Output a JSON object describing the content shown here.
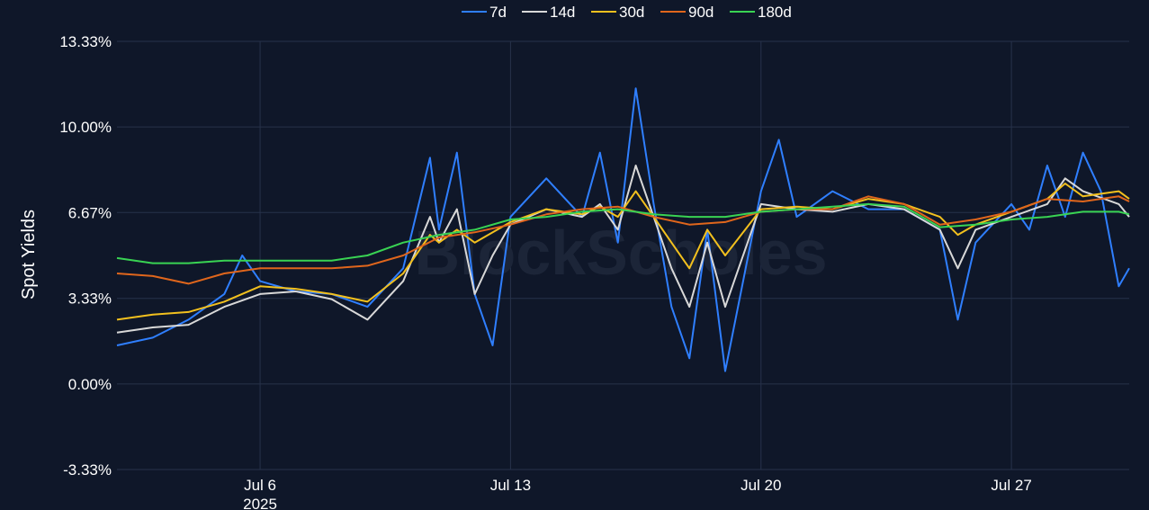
{
  "chart_data": {
    "type": "line",
    "title": "",
    "xlabel": "",
    "ylabel": "Spot Yields",
    "watermark": "BlockScholes",
    "x_range": [
      "2025-07-02",
      "2025-07-30T07:00"
    ],
    "ylim": [
      -3.33,
      13.33
    ],
    "yticks": [
      "13.33%",
      "10.00%",
      "6.67%",
      "3.33%",
      "0.00%",
      "-3.33%"
    ],
    "ytick_values": [
      13.33,
      10.0,
      6.67,
      3.33,
      0.0,
      -3.33
    ],
    "xticks": [
      {
        "date": "2025-07-06",
        "label": "Jul 6",
        "sub": "2025"
      },
      {
        "date": "2025-07-13",
        "label": "Jul 13",
        "sub": ""
      },
      {
        "date": "2025-07-20",
        "label": "Jul 20",
        "sub": ""
      },
      {
        "date": "2025-07-27",
        "label": "Jul 27",
        "sub": ""
      }
    ],
    "grid": true,
    "legend_position": "top-center",
    "series": [
      {
        "name": "7d",
        "color": "#2f7fff",
        "x": [
          "2025-07-02",
          "2025-07-03",
          "2025-07-04",
          "2025-07-05",
          "2025-07-05T12:00",
          "2025-07-06",
          "2025-07-07",
          "2025-07-08",
          "2025-07-09",
          "2025-07-10",
          "2025-07-10T18:00",
          "2025-07-11",
          "2025-07-11T12:00",
          "2025-07-12",
          "2025-07-12T12:00",
          "2025-07-13",
          "2025-07-14",
          "2025-07-15",
          "2025-07-15T12:00",
          "2025-07-16",
          "2025-07-16T12:00",
          "2025-07-17",
          "2025-07-17T12:00",
          "2025-07-18",
          "2025-07-18T12:00",
          "2025-07-19",
          "2025-07-20",
          "2025-07-20T12:00",
          "2025-07-21",
          "2025-07-22",
          "2025-07-23",
          "2025-07-24",
          "2025-07-25",
          "2025-07-25T12:00",
          "2025-07-26",
          "2025-07-27",
          "2025-07-27T12:00",
          "2025-07-28",
          "2025-07-28T12:00",
          "2025-07-29",
          "2025-07-29T12:00",
          "2025-07-30",
          "2025-07-30T07:00"
        ],
        "y": [
          1.5,
          1.8,
          2.5,
          3.5,
          5.0,
          4.0,
          3.6,
          3.5,
          3.0,
          4.5,
          8.8,
          6.0,
          9.0,
          3.5,
          1.5,
          6.5,
          8.0,
          6.5,
          9.0,
          5.5,
          11.5,
          7.0,
          3.0,
          1.0,
          6.0,
          0.5,
          7.5,
          9.5,
          6.5,
          7.5,
          6.8,
          6.8,
          6.0,
          2.5,
          5.5,
          7.0,
          6.0,
          8.5,
          6.5,
          9.0,
          7.5,
          3.8,
          4.5
        ]
      },
      {
        "name": "14d",
        "color": "#d8d8d8",
        "x": [
          "2025-07-02",
          "2025-07-03",
          "2025-07-04",
          "2025-07-05",
          "2025-07-06",
          "2025-07-07",
          "2025-07-08",
          "2025-07-09",
          "2025-07-10",
          "2025-07-10T18:00",
          "2025-07-11",
          "2025-07-11T12:00",
          "2025-07-12",
          "2025-07-12T12:00",
          "2025-07-13",
          "2025-07-14",
          "2025-07-15",
          "2025-07-15T12:00",
          "2025-07-16",
          "2025-07-16T12:00",
          "2025-07-17",
          "2025-07-17T12:00",
          "2025-07-18",
          "2025-07-18T12:00",
          "2025-07-19",
          "2025-07-20",
          "2025-07-21",
          "2025-07-22",
          "2025-07-23",
          "2025-07-24",
          "2025-07-25",
          "2025-07-25T12:00",
          "2025-07-26",
          "2025-07-27",
          "2025-07-28",
          "2025-07-28T12:00",
          "2025-07-29",
          "2025-07-30",
          "2025-07-30T07:00"
        ],
        "y": [
          2.0,
          2.2,
          2.3,
          3.0,
          3.5,
          3.6,
          3.3,
          2.5,
          4.0,
          6.5,
          5.5,
          6.8,
          3.5,
          5.0,
          6.2,
          6.8,
          6.5,
          7.0,
          6.0,
          8.5,
          6.5,
          4.5,
          3.0,
          5.5,
          3.0,
          7.0,
          6.8,
          6.7,
          7.0,
          6.8,
          6.0,
          4.5,
          6.0,
          6.5,
          7.0,
          8.0,
          7.5,
          7.0,
          6.5
        ]
      },
      {
        "name": "30d",
        "color": "#f2c01e",
        "x": [
          "2025-07-02",
          "2025-07-03",
          "2025-07-04",
          "2025-07-05",
          "2025-07-06",
          "2025-07-07",
          "2025-07-08",
          "2025-07-09",
          "2025-07-10",
          "2025-07-10T18:00",
          "2025-07-11",
          "2025-07-11T12:00",
          "2025-07-12",
          "2025-07-13",
          "2025-07-14",
          "2025-07-15",
          "2025-07-15T12:00",
          "2025-07-16",
          "2025-07-16T12:00",
          "2025-07-17",
          "2025-07-17T12:00",
          "2025-07-18",
          "2025-07-18T12:00",
          "2025-07-19",
          "2025-07-20",
          "2025-07-21",
          "2025-07-22",
          "2025-07-23",
          "2025-07-24",
          "2025-07-25",
          "2025-07-25T12:00",
          "2025-07-26",
          "2025-07-27",
          "2025-07-28",
          "2025-07-28T12:00",
          "2025-07-29",
          "2025-07-30",
          "2025-07-30T07:00"
        ],
        "y": [
          2.5,
          2.7,
          2.8,
          3.2,
          3.8,
          3.7,
          3.5,
          3.2,
          4.3,
          5.8,
          5.5,
          6.0,
          5.5,
          6.3,
          6.8,
          6.6,
          6.9,
          6.5,
          7.5,
          6.5,
          5.5,
          4.5,
          6.0,
          5.0,
          6.8,
          6.9,
          6.8,
          7.2,
          7.0,
          6.5,
          5.8,
          6.2,
          6.7,
          7.2,
          7.8,
          7.3,
          7.5,
          7.2
        ]
      },
      {
        "name": "90d",
        "color": "#e0661c",
        "x": [
          "2025-07-02",
          "2025-07-03",
          "2025-07-04",
          "2025-07-05",
          "2025-07-06",
          "2025-07-07",
          "2025-07-08",
          "2025-07-09",
          "2025-07-10",
          "2025-07-11",
          "2025-07-12",
          "2025-07-13",
          "2025-07-14",
          "2025-07-15",
          "2025-07-16",
          "2025-07-17",
          "2025-07-18",
          "2025-07-19",
          "2025-07-20",
          "2025-07-21",
          "2025-07-22",
          "2025-07-23",
          "2025-07-24",
          "2025-07-25",
          "2025-07-26",
          "2025-07-27",
          "2025-07-28",
          "2025-07-29",
          "2025-07-30",
          "2025-07-30T07:00"
        ],
        "y": [
          4.3,
          4.2,
          3.9,
          4.3,
          4.5,
          4.5,
          4.5,
          4.6,
          5.0,
          5.7,
          5.9,
          6.2,
          6.6,
          6.8,
          6.9,
          6.5,
          6.2,
          6.3,
          6.7,
          6.8,
          6.8,
          7.3,
          7.0,
          6.2,
          6.4,
          6.7,
          7.2,
          7.1,
          7.3,
          7.1
        ]
      },
      {
        "name": "180d",
        "color": "#39d353",
        "x": [
          "2025-07-02",
          "2025-07-03",
          "2025-07-04",
          "2025-07-05",
          "2025-07-06",
          "2025-07-07",
          "2025-07-08",
          "2025-07-09",
          "2025-07-10",
          "2025-07-11",
          "2025-07-12",
          "2025-07-13",
          "2025-07-14",
          "2025-07-15",
          "2025-07-16",
          "2025-07-17",
          "2025-07-18",
          "2025-07-19",
          "2025-07-20",
          "2025-07-21",
          "2025-07-22",
          "2025-07-23",
          "2025-07-24",
          "2025-07-25",
          "2025-07-26",
          "2025-07-27",
          "2025-07-28",
          "2025-07-29",
          "2025-07-30",
          "2025-07-30T07:00"
        ],
        "y": [
          4.9,
          4.7,
          4.7,
          4.8,
          4.8,
          4.8,
          4.8,
          5.0,
          5.5,
          5.8,
          6.0,
          6.4,
          6.5,
          6.7,
          6.8,
          6.6,
          6.5,
          6.5,
          6.7,
          6.8,
          6.9,
          7.0,
          6.9,
          6.1,
          6.2,
          6.4,
          6.5,
          6.7,
          6.7,
          6.6
        ]
      }
    ]
  }
}
